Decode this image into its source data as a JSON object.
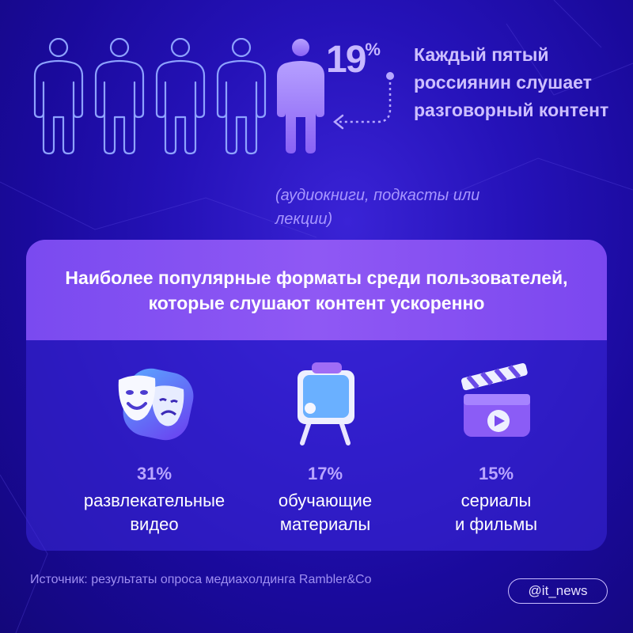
{
  "stat": {
    "percent": "19",
    "percent_sign": "%",
    "headline": "Каждый пятый россиянин слушает разговорный контент",
    "note": "(аудиокниги, подкасты или лекции)",
    "people_total": 5,
    "people_highlighted": 1
  },
  "panel": {
    "title": "Наиболее популярные форматы среди пользователей, которые слушают контент ускоренно",
    "formats": [
      {
        "percent": "31%",
        "label": "развлекательные\nвидео",
        "icon": "theater-masks-icon"
      },
      {
        "percent": "17%",
        "label": "обучающие\nматериалы",
        "icon": "presentation-board-icon"
      },
      {
        "percent": "15%",
        "label": "сериалы\nи фильмы",
        "icon": "clapperboard-icon"
      }
    ]
  },
  "footer": {
    "source": "Источник: результаты опроса медиахолдинга Rambler&Co",
    "handle": "@it_news"
  },
  "colors": {
    "background": "#2512b8",
    "accent_purple": "#8f58f4",
    "highlight_text": "#c7b8ff"
  }
}
